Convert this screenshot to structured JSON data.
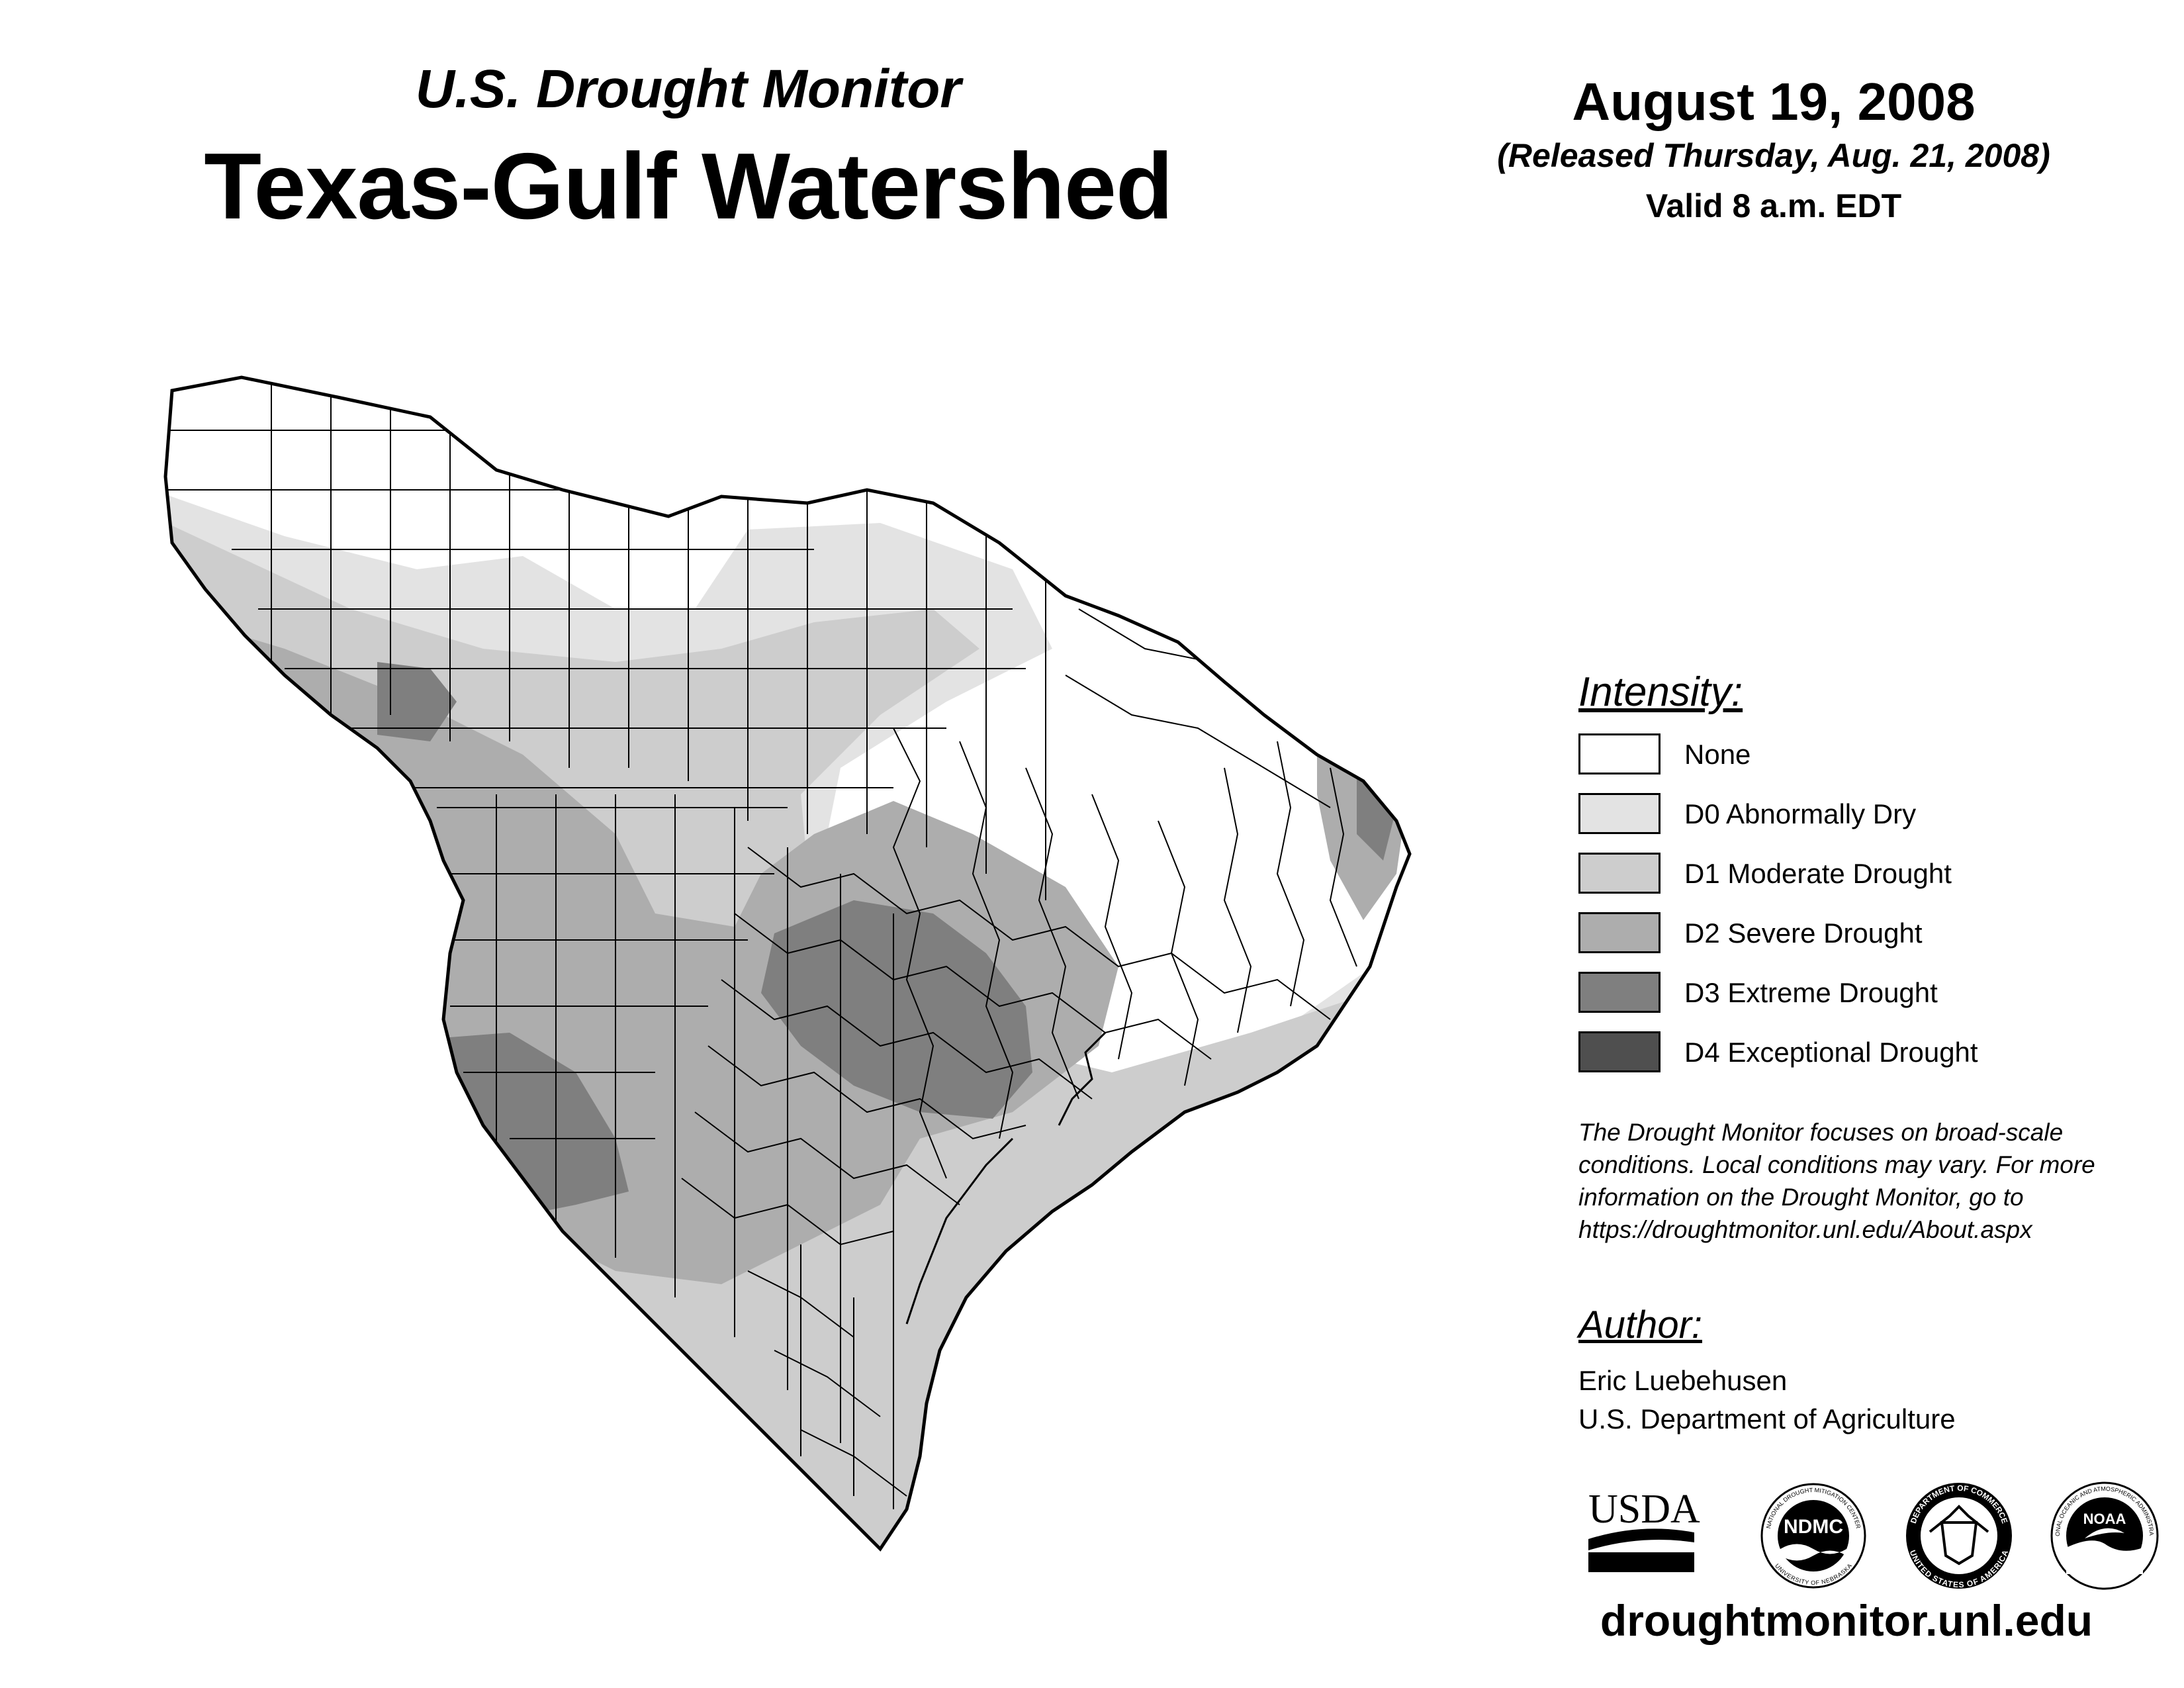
{
  "header": {
    "subtitle": "U.S. Drought Monitor",
    "title": "Texas-Gulf Watershed",
    "date": "August 19, 2008",
    "released": "(Released Thursday, Aug. 21, 2008)",
    "valid": "Valid 8 a.m. EDT"
  },
  "legend": {
    "title": "Intensity:",
    "items": [
      {
        "label": "None",
        "color": "#ffffff"
      },
      {
        "label": "D0 Abnormally Dry",
        "color": "#e3e3e3"
      },
      {
        "label": "D1 Moderate Drought",
        "color": "#cdcdcd"
      },
      {
        "label": "D2 Severe Drought",
        "color": "#adadad"
      },
      {
        "label": "D3 Extreme Drought",
        "color": "#7f7f7f"
      },
      {
        "label": "D4 Exceptional Drought",
        "color": "#4f4f4f"
      }
    ]
  },
  "note": "The Drought Monitor focuses on broad-scale conditions. Local conditions may vary. For more information on the Drought Monitor, go to https://droughtmonitor.unl.edu/About.aspx",
  "author": {
    "title": "Author:",
    "name": "Eric Luebehusen",
    "org": "U.S. Department of Agriculture"
  },
  "logos": {
    "usda": "USDA",
    "ndmc": "NDMC",
    "ndmc_ring_top": "NATIONAL DROUGHT MITIGATION CENTER",
    "ndmc_ring_bottom": "UNIVERSITY OF NEBRASKA",
    "doc_ring_top": "DEPARTMENT OF COMMERCE",
    "doc_ring_bottom": "UNITED STATES OF AMERICA",
    "noaa": "NOAA",
    "noaa_ring": "NATIONAL OCEANIC AND ATMOSPHERIC ADMINISTRATION"
  },
  "footer": {
    "url": "droughtmonitor.unl.edu"
  }
}
